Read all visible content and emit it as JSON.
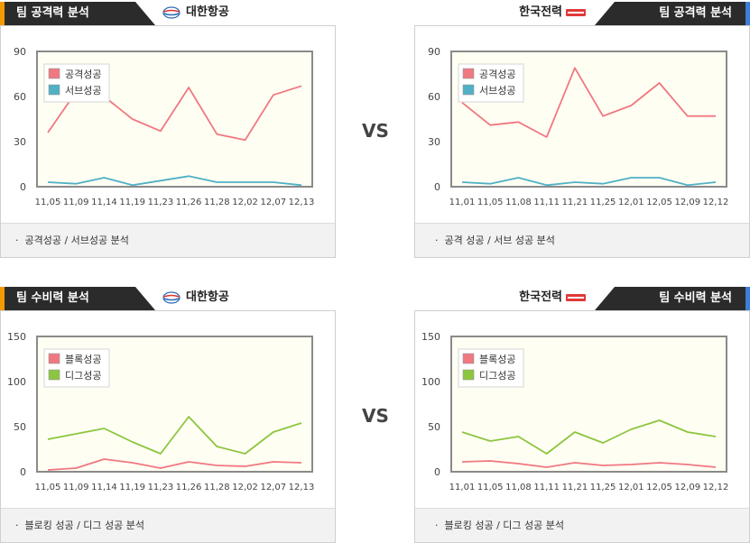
{
  "vs_label": "VS",
  "panels": [
    {
      "title": "팀 공격력 분석",
      "team": "대한항공",
      "logo": "korean-air-logo",
      "side": "left",
      "footer": "공격성공 / 서브성공 분석",
      "chart_data": {
        "type": "line",
        "categories": [
          "11,05",
          "11,09",
          "11,14",
          "11,19",
          "11,23",
          "11,26",
          "11,28",
          "12,02",
          "12,07",
          "12,13"
        ],
        "ylim": [
          0,
          90
        ],
        "yticks": [
          0,
          30,
          60,
          90
        ],
        "legend_position": "top-left",
        "grid": false,
        "series": [
          {
            "name": "공격성공",
            "color": "#f07880",
            "values": [
              36,
              63,
              60,
              45,
              37,
              66,
              35,
              31,
              61,
              67
            ]
          },
          {
            "name": "서브성공",
            "color": "#4fb0c6",
            "values": [
              3,
              2,
              6,
              1,
              4,
              7,
              3,
              3,
              3,
              1
            ]
          }
        ]
      }
    },
    {
      "title": "팀 공격력 분석",
      "team": "한국전력",
      "logo": "kepco-logo",
      "side": "right",
      "footer": "공격 성공 / 서브 성공 분석",
      "chart_data": {
        "type": "line",
        "categories": [
          "11,01",
          "11,05",
          "11,08",
          "11,11",
          "11,21",
          "11,25",
          "12,01",
          "12,05",
          "12,09",
          "12,12"
        ],
        "ylim": [
          0,
          90
        ],
        "yticks": [
          0,
          30,
          60,
          90
        ],
        "legend_position": "top-left",
        "grid": false,
        "series": [
          {
            "name": "공격성공",
            "color": "#f07880",
            "values": [
              56,
              41,
              43,
              33,
              79,
              47,
              54,
              69,
              47,
              47
            ]
          },
          {
            "name": "서브성공",
            "color": "#4fb0c6",
            "values": [
              3,
              2,
              6,
              1,
              3,
              2,
              6,
              6,
              1,
              3
            ]
          }
        ]
      }
    },
    {
      "title": "팀 수비력 분석",
      "team": "대한항공",
      "logo": "korean-air-logo",
      "side": "left",
      "footer": "블로킹 성공 / 디그 성공 분석",
      "chart_data": {
        "type": "line",
        "categories": [
          "11,05",
          "11,09",
          "11,14",
          "11,19",
          "11,23",
          "11,26",
          "11,28",
          "12,02",
          "12,07",
          "12,13"
        ],
        "ylim": [
          0,
          150
        ],
        "yticks": [
          0,
          50,
          100,
          150
        ],
        "legend_position": "top-left",
        "grid": false,
        "series": [
          {
            "name": "블록성공",
            "color": "#f07880",
            "values": [
              2,
              4,
              14,
              10,
              4,
              11,
              7,
              6,
              11,
              10
            ]
          },
          {
            "name": "디그성공",
            "color": "#8cc63f",
            "values": [
              36,
              42,
              48,
              33,
              20,
              61,
              28,
              20,
              44,
              54
            ]
          }
        ]
      }
    },
    {
      "title": "팀 수비력 분석",
      "team": "한국전력",
      "logo": "kepco-logo",
      "side": "right",
      "footer": "블로킹 성공 / 디그 성공 분석",
      "chart_data": {
        "type": "line",
        "categories": [
          "11,01",
          "11,05",
          "11,08",
          "11,11",
          "11,21",
          "11,25",
          "12,01",
          "12,05",
          "12,09",
          "12,12"
        ],
        "ylim": [
          0,
          150
        ],
        "yticks": [
          0,
          50,
          100,
          150
        ],
        "legend_position": "top-left",
        "grid": false,
        "series": [
          {
            "name": "블록성공",
            "color": "#f07880",
            "values": [
              11,
              12,
              9,
              5,
              10,
              7,
              8,
              10,
              8,
              5
            ]
          },
          {
            "name": "디그성공",
            "color": "#8cc63f",
            "values": [
              44,
              34,
              39,
              20,
              44,
              32,
              47,
              57,
              44,
              39
            ]
          }
        ]
      }
    }
  ]
}
